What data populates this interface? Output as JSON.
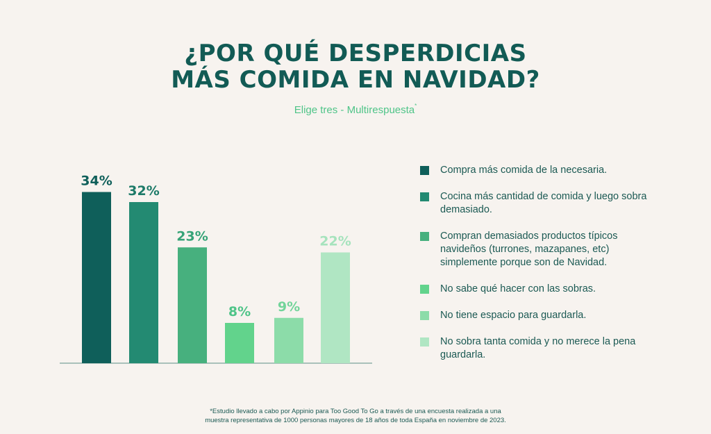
{
  "title": {
    "line1": "¿POR QUÉ DESPERDICIAS",
    "line2": "MÁS COMIDA EN NAVIDAD?"
  },
  "subtitle": {
    "text": "Elige tres - Multirespuesta",
    "marker": "*"
  },
  "chart_data": {
    "type": "bar",
    "categories": [
      "Compra más comida de la necesaria.",
      "Cocina más cantidad de comida y luego sobra demasiado.",
      "Compran demasiados productos típicos navideños (turrones, mazapanes, etc) simplemente porque son de Navidad.",
      "No sabe qué hacer con las sobras.",
      "No tiene espacio para guardarla.",
      "No sobra tanta comida y no merece la pena guardarla."
    ],
    "values": [
      34,
      32,
      23,
      8,
      9,
      22
    ],
    "value_labels": [
      "34%",
      "32%",
      "23%",
      "8%",
      "9%",
      "22%"
    ],
    "colors": [
      "#0f5f5a",
      "#238a72",
      "#47b07e",
      "#62d38c",
      "#8cdca9",
      "#b0e6c3"
    ],
    "label_colors": [
      "#0f5f5a",
      "#1d7a68",
      "#36a377",
      "#4fc488",
      "#72d49a",
      "#a6e3bd"
    ],
    "title": "",
    "xlabel": "",
    "ylabel": "",
    "ylim": [
      0,
      40
    ],
    "grid": false,
    "legend_position": "right"
  },
  "legend": {
    "items": [
      {
        "label": "Compra más comida de la necesaria."
      },
      {
        "label": "Cocina más cantidad de comida y luego sobra demasiado."
      },
      {
        "label": "Compran demasiados productos típicos navideños (turrones, mazapanes, etc) simplemente porque son de Navidad."
      },
      {
        "label": "No sabe qué hacer con las sobras."
      },
      {
        "label": "No tiene espacio para guardarla."
      },
      {
        "label": "No sobra tanta comida y no merece la pena guardarla."
      }
    ]
  },
  "footnote": {
    "line1": "*Estudio llevado a cabo por Appinio para Too Good To Go a través de una encuesta realizada a una",
    "line2": "muestra representativa de 1000 personas mayores de 18 años de toda España en noviembre de 2023."
  }
}
